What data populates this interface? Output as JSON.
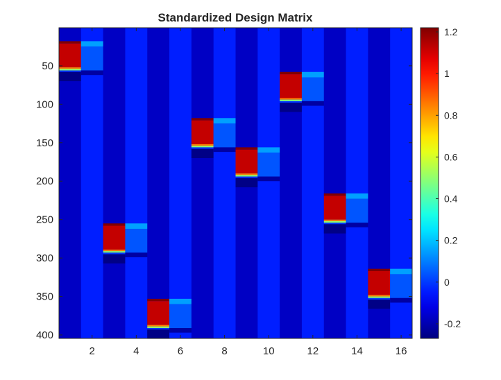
{
  "chart_data": {
    "type": "heatmap",
    "title": "Standardized Design Matrix",
    "xlabel": "",
    "ylabel": "",
    "n_rows": 404,
    "n_cols": 16,
    "x_ticks": [
      2,
      4,
      6,
      8,
      10,
      12,
      14,
      16
    ],
    "y_ticks": [
      50,
      100,
      150,
      200,
      250,
      300,
      350,
      400
    ],
    "y_direction": "reverse",
    "colormap": "jet",
    "clim": [
      -0.27,
      1.22
    ],
    "colorbar": {
      "position": "right",
      "ticks": [
        -0.2,
        0,
        0.2,
        0.4,
        0.6,
        0.8,
        1,
        1.2
      ]
    },
    "base_values": {
      "odd_columns": -0.17,
      "even_columns": -0.04
    },
    "blocks": [
      {
        "cols": [
          1,
          2
        ],
        "rows": [
          18,
          55
        ]
      },
      {
        "cols": [
          3,
          4
        ],
        "rows": [
          255,
          292
        ]
      },
      {
        "cols": [
          5,
          6
        ],
        "rows": [
          353,
          390
        ]
      },
      {
        "cols": [
          7,
          8
        ],
        "rows": [
          118,
          155
        ]
      },
      {
        "cols": [
          9,
          10
        ],
        "rows": [
          156,
          193
        ]
      },
      {
        "cols": [
          11,
          12
        ],
        "rows": [
          58,
          95
        ]
      },
      {
        "cols": [
          13,
          14
        ],
        "rows": [
          216,
          253
        ]
      },
      {
        "cols": [
          15,
          16
        ],
        "rows": [
          314,
          351
        ]
      }
    ],
    "block_values": {
      "odd_column_block": 1.12,
      "odd_column_first_row": 1.22,
      "odd_column_last_row": 0.5,
      "even_column_first_row": 0.15,
      "even_column_block": 0.04,
      "even_column_last_row": -0.22,
      "odd_column_after_block": -0.26
    }
  }
}
